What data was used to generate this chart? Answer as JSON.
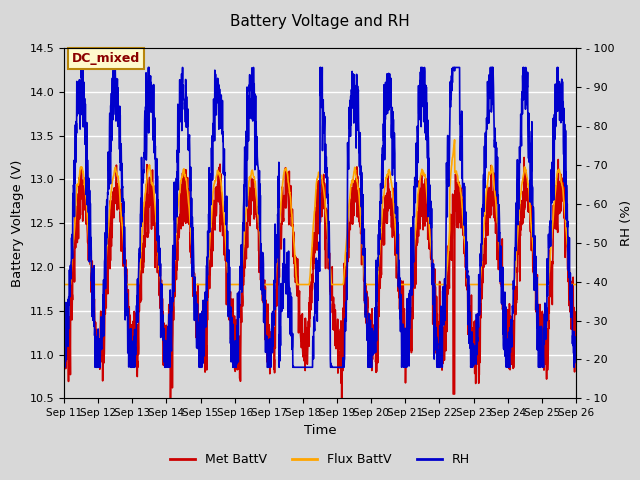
{
  "title": "Battery Voltage and RH",
  "xlabel": "Time",
  "ylabel_left": "Battery Voltage (V)",
  "ylabel_right": "RH (%)",
  "annotation_text": "DC_mixed",
  "annotation_color": "#8B0000",
  "annotation_bg": "#FFFACD",
  "annotation_border": "#B8860B",
  "ylim_left": [
    10.5,
    14.5
  ],
  "ylim_right": [
    10,
    100
  ],
  "yticks_left": [
    10.5,
    11.0,
    11.5,
    12.0,
    12.5,
    13.0,
    13.5,
    14.0,
    14.5
  ],
  "yticks_right": [
    10,
    20,
    30,
    40,
    50,
    60,
    70,
    80,
    90,
    100
  ],
  "xtick_labels": [
    "Sep 11",
    "Sep 12",
    "Sep 13",
    "Sep 14",
    "Sep 15",
    "Sep 16",
    "Sep 17",
    "Sep 18",
    "Sep 19",
    "Sep 20",
    "Sep 21",
    "Sep 22",
    "Sep 23",
    "Sep 24",
    "Sep 25",
    "Sep 26"
  ],
  "color_met": "#CC0000",
  "color_flux": "#FFA500",
  "color_rh": "#0000CC",
  "legend_labels": [
    "Met BattV",
    "Flux BattV",
    "RH"
  ],
  "bg_color": "#D8D8D8",
  "plot_bg_color": "#D8D8D8",
  "linewidth": 1.2,
  "n_days": 15,
  "n_pts_per_day": 144
}
